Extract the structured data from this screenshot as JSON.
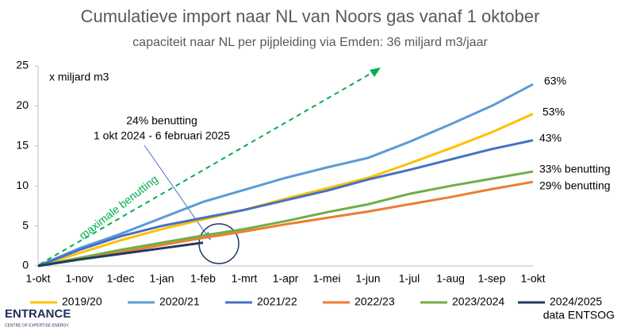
{
  "chart_data": {
    "type": "line",
    "title": "Cumulatieve import naar NL van Noors gas vanaf 1 oktober",
    "subtitle": "capaciteit naar NL per pijpleiding via Emden: 36 miljard m3/jaar",
    "y_label": "x miljard m3",
    "categories": [
      "1-okt",
      "1-nov",
      "1-dec",
      "1-jan",
      "1-feb",
      "1-mrt",
      "1-apr",
      "1-mei",
      "1-jun",
      "1-jul",
      "1-aug",
      "1-sep",
      "1-okt"
    ],
    "series": [
      {
        "name": "2019/20",
        "color": "#ffc000",
        "values": [
          0,
          1.6,
          3.2,
          4.6,
          5.8,
          7.0,
          8.4,
          9.7,
          11.0,
          12.8,
          14.7,
          16.7,
          19.0
        ]
      },
      {
        "name": "2020/21",
        "color": "#5b9bd5",
        "values": [
          0,
          2.2,
          4.0,
          6.0,
          8.0,
          9.5,
          11.0,
          12.3,
          13.5,
          15.5,
          17.7,
          20.0,
          22.7
        ]
      },
      {
        "name": "2021/22",
        "color": "#4472c4",
        "values": [
          0,
          2.0,
          3.7,
          5.0,
          6.0,
          7.0,
          8.2,
          9.4,
          10.8,
          12.0,
          13.3,
          14.6,
          15.7
        ]
      },
      {
        "name": "2022/23",
        "color": "#ed7d31",
        "values": [
          0,
          0.8,
          1.7,
          2.6,
          3.5,
          4.3,
          5.2,
          6.0,
          6.8,
          7.7,
          8.6,
          9.6,
          10.5
        ]
      },
      {
        "name": "2023/2024",
        "color": "#70ad47",
        "values": [
          0,
          1.0,
          2.0,
          2.9,
          3.8,
          4.6,
          5.6,
          6.7,
          7.7,
          9.0,
          10.0,
          10.9,
          11.8
        ]
      },
      {
        "name": "2024/2025",
        "color": "#203864",
        "values": [
          0,
          0.8,
          1.5,
          2.2,
          2.9,
          null,
          null,
          null,
          null,
          null,
          null,
          null,
          null
        ]
      }
    ],
    "ylim": [
      0,
      25
    ],
    "yticks": [
      0,
      5,
      10,
      15,
      20,
      25
    ],
    "grid": false,
    "annotations": [
      "63%",
      "53%",
      "43%",
      "33% benutting",
      "29% benutting",
      "24% benutting",
      "1 okt 2024 - 6 februari 2025",
      "maximale benutting"
    ],
    "source": "data ENTSOG",
    "logo": {
      "name": "ENTRANCE",
      "tagline": "CENTRE OF EXPERTISE ENERGY"
    }
  }
}
